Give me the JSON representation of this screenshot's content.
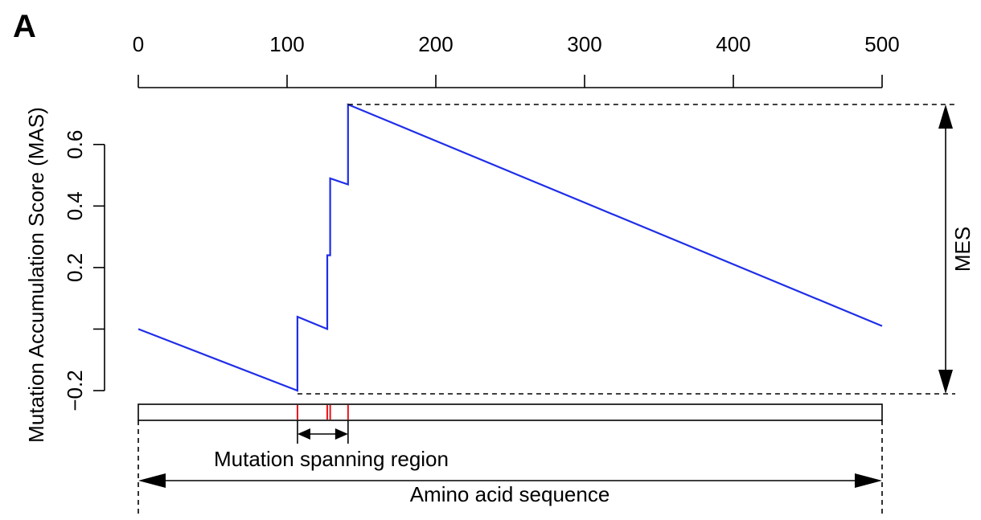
{
  "panel_label": "A",
  "chart_data": {
    "type": "line",
    "title": "",
    "xlabel": "",
    "ylabel": "Mutation Accumulation Score (MAS)",
    "xlim": [
      0,
      500
    ],
    "ylim": [
      -0.2,
      0.73
    ],
    "x_ticks": [
      0,
      100,
      200,
      300,
      400,
      500
    ],
    "y_ticks": [
      -0.2,
      0,
      0.2,
      0.4,
      0.6
    ],
    "y_tick_labels": [
      "−0.2",
      "",
      "0.2",
      "0.4",
      "0.6"
    ],
    "grid": false,
    "series": [
      {
        "color": "#1f2ee8",
        "x": [
          0,
          107,
          107,
          127,
          127,
          129,
          129,
          141,
          141,
          500
        ],
        "y": [
          0.0,
          -0.2,
          0.04,
          0.0,
          0.24,
          0.24,
          0.49,
          0.47,
          0.73,
          0.01
        ]
      }
    ],
    "mutations": [
      107,
      127,
      129,
      141
    ],
    "mutation_color": "#e8141b",
    "annotations": {
      "mes_label": "MES",
      "mutation_region_label": "Mutation spanning region",
      "sequence_label": "Amino acid sequence"
    }
  }
}
